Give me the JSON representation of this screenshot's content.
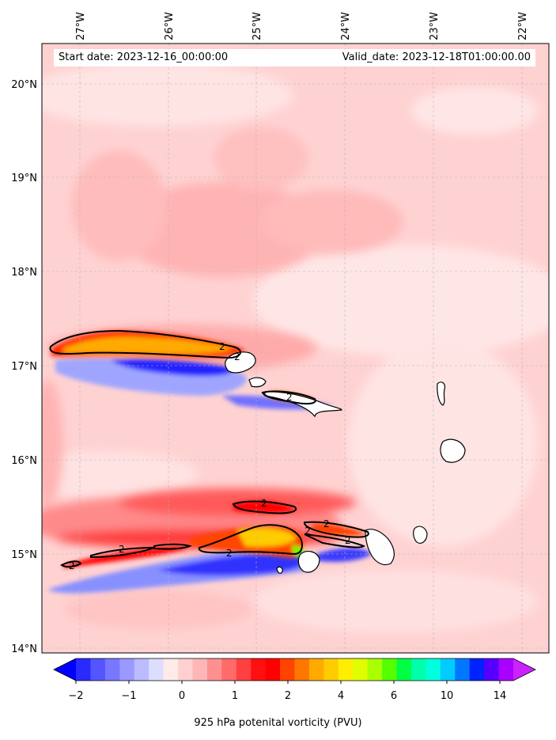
{
  "map": {
    "lon_labels": [
      "27°W",
      "26°W",
      "25°W",
      "24°W",
      "23°W",
      "22°W"
    ],
    "lat_labels": [
      "20°N",
      "19°N",
      "18°N",
      "17°N",
      "16°N",
      "15°N",
      "14°N"
    ],
    "start_text": "Start date: 2023-12-16_00:00:00",
    "valid_text": "Valid_date: 2023-12-18T01:00:00.00",
    "contour_labels": [
      "2",
      "2",
      "2",
      "2",
      "2",
      "2",
      "2",
      "2",
      "2",
      "2"
    ]
  },
  "colorbar": {
    "tick_labels": [
      "−2",
      "−1",
      "0",
      "1",
      "2",
      "4",
      "6",
      "10",
      "14"
    ],
    "title": "925 hPa potenital vorticity (PVU)",
    "colors": [
      "#0000ff",
      "#2a2aff",
      "#5555ff",
      "#7777ff",
      "#9999ff",
      "#bbbbff",
      "#ddddff",
      "#ffeaea",
      "#ffd0d0",
      "#ffb6b6",
      "#ff9090",
      "#ff6a6a",
      "#ff4040",
      "#ff1010",
      "#ff0000",
      "#ff4400",
      "#ff7700",
      "#ffaa00",
      "#ffcc00",
      "#ffee00",
      "#dfff00",
      "#aaff00",
      "#55ff00",
      "#00ff44",
      "#00ffaa",
      "#00ffdd",
      "#00ccff",
      "#0077ff",
      "#0022ff",
      "#5500ff",
      "#aa00ff",
      "#cc22ff"
    ]
  }
}
